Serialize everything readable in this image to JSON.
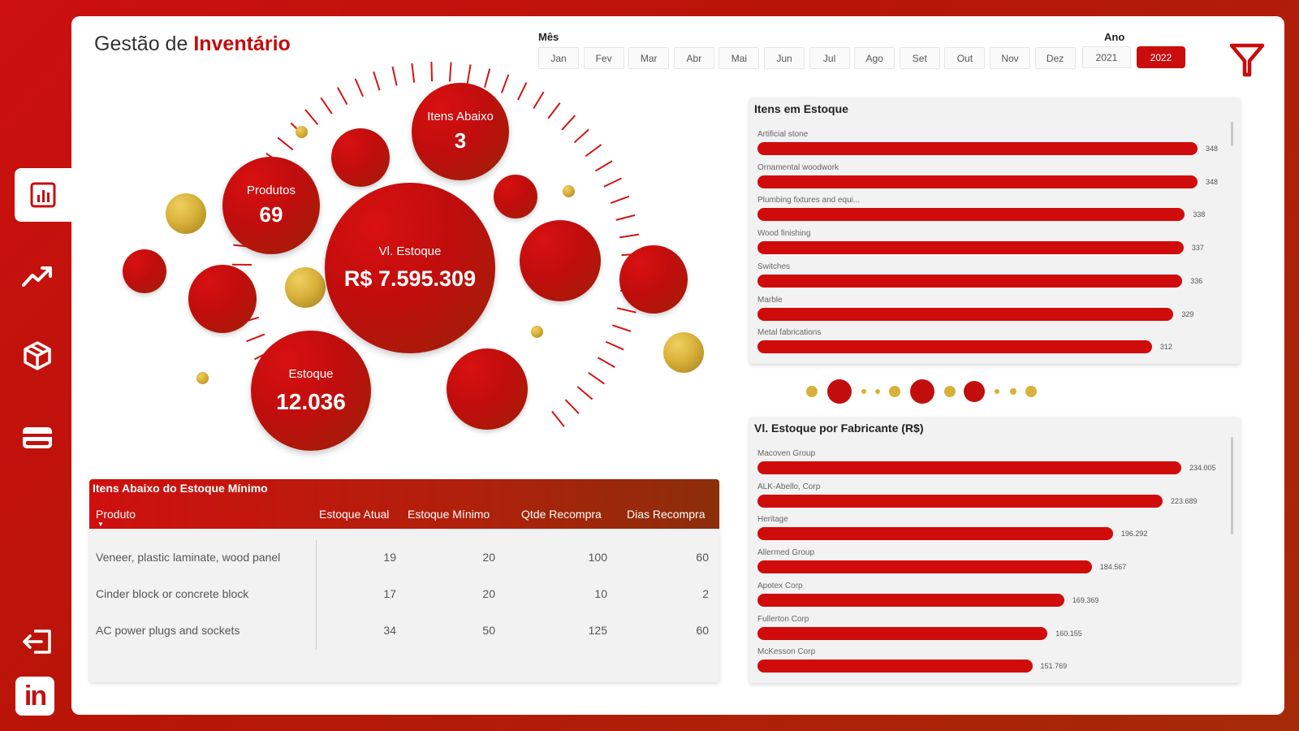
{
  "sidebar": {
    "items": [
      {
        "name": "dashboard",
        "icon": "bar-chart-icon",
        "active": true
      },
      {
        "name": "trend",
        "icon": "trend-up-icon",
        "active": false
      },
      {
        "name": "products",
        "icon": "box-icon",
        "active": false
      },
      {
        "name": "payments",
        "icon": "card-icon",
        "active": false
      }
    ],
    "exit_icon": "logout-icon",
    "linkedin_icon": "linkedin-icon",
    "linkedin_label": "in"
  },
  "header": {
    "title_prefix": "Gestão de ",
    "title_strong": "Inventário"
  },
  "filters": {
    "month_label": "Mês",
    "months": [
      "Jan",
      "Fev",
      "Mar",
      "Abr",
      "Mai",
      "Jun",
      "Jul",
      "Ago",
      "Set",
      "Out",
      "Nov",
      "Dez"
    ],
    "year_label": "Ano",
    "years": [
      "2021",
      "2022"
    ],
    "selected_year": "2022",
    "filter_icon": "funnel-filter-icon"
  },
  "kpis": {
    "itens_abaixo": {
      "label": "Itens Abaixo",
      "value": "3"
    },
    "produtos": {
      "label": "Produtos",
      "value": "69"
    },
    "vl_estoque": {
      "label": "Vl. Estoque",
      "value": "R$ 7.595.309"
    },
    "estoque": {
      "label": "Estoque",
      "value": "12.036"
    }
  },
  "table": {
    "title": "Itens Abaixo do Estoque Mínimo",
    "columns": [
      "Produto",
      "Estoque Atual",
      "Estoque Mínimo",
      "Qtde Recompra",
      "Dias Recompra"
    ],
    "sort_indicator": "▼",
    "rows": [
      [
        "Veneer, plastic laminate, wood panel",
        "19",
        "20",
        "100",
        "60"
      ],
      [
        "Cinder block or concrete block",
        "17",
        "20",
        "10",
        "2"
      ],
      [
        "AC power plugs and sockets",
        "34",
        "50",
        "125",
        "60"
      ]
    ]
  },
  "itens_estoque": {
    "title": "Itens em Estoque",
    "chart_data": {
      "type": "bar",
      "categories": [
        "Artificial stone",
        "Ornamental woodwork",
        "Plumbing fixtures and equi...",
        "Wood finishing",
        "Switches",
        "Marble",
        "Metal fabrications"
      ],
      "values": [
        348,
        348,
        338,
        337,
        336,
        329,
        312
      ],
      "value_labels": [
        "348",
        "348",
        "338",
        "337",
        "336",
        "329",
        "312"
      ],
      "xlim": [
        0,
        348
      ]
    }
  },
  "vl_estoque_fabricante": {
    "title": "Vl. Estoque por Fabricante (R$)",
    "chart_data": {
      "type": "bar",
      "categories": [
        "Macoven Group",
        "ALK-Abello, Corp",
        "Heritage",
        "Allermed Group",
        "Apotex Corp",
        "Fullerton Corp",
        "McKesson Corp"
      ],
      "values": [
        234005,
        223689,
        196292,
        184567,
        169369,
        160155,
        151769
      ],
      "value_labels": [
        "234.005",
        "223.689",
        "196.292",
        "184.567",
        "169.369",
        "160.155",
        "151.769"
      ],
      "xlim": [
        0,
        234005
      ]
    }
  },
  "colors": {
    "accent": "#c90c0c",
    "gold": "#d8b13a",
    "bar": "#d00b0b"
  }
}
